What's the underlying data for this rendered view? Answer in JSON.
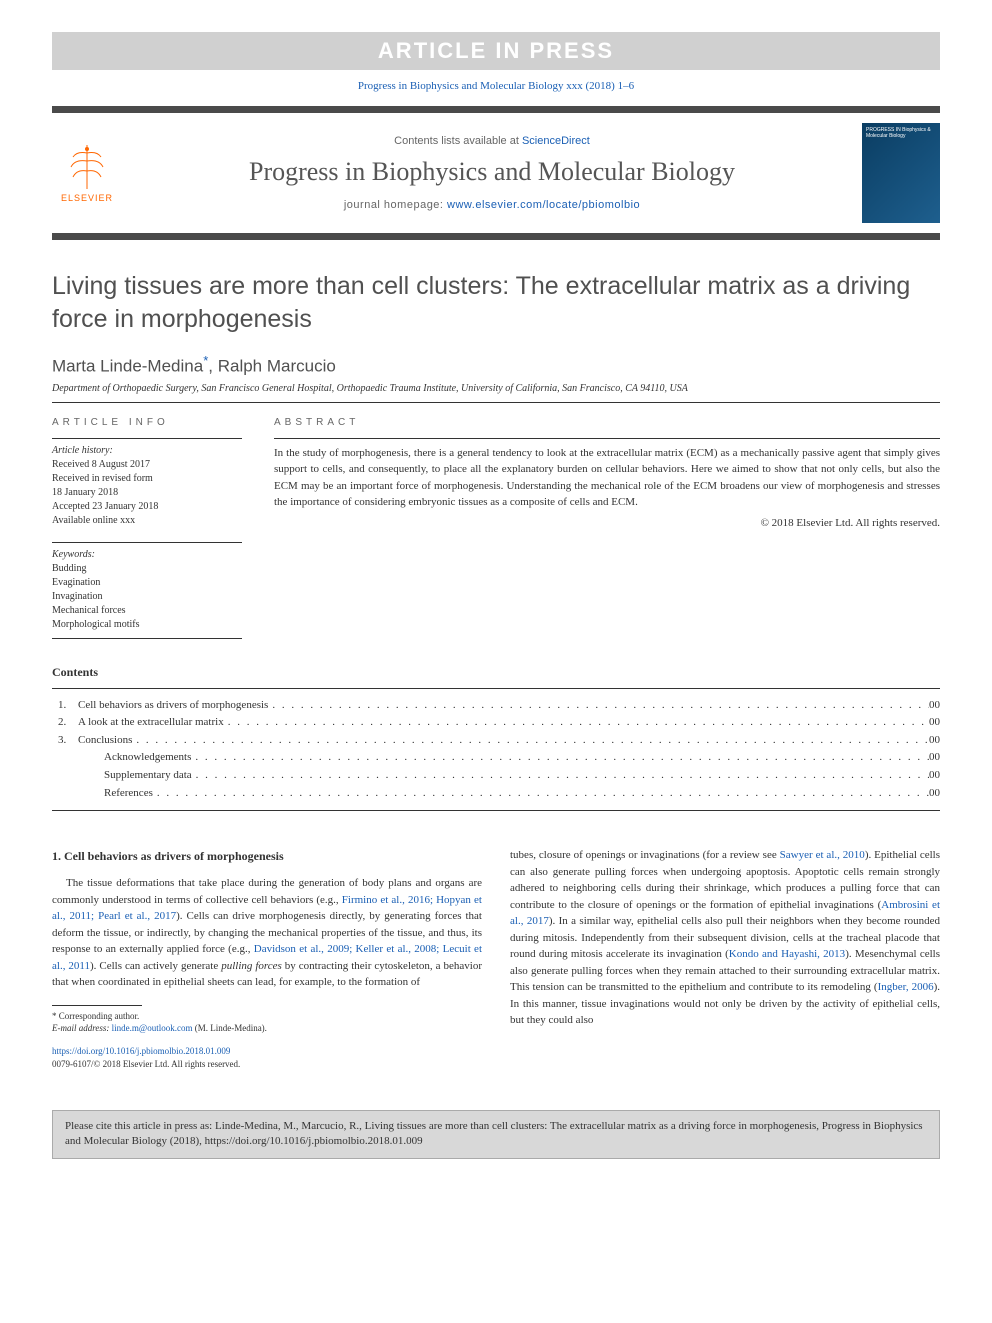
{
  "banner": "ARTICLE IN PRESS",
  "citationTop": "Progress in Biophysics and Molecular Biology xxx (2018) 1–6",
  "masthead": {
    "publisherName": "ELSEVIER",
    "contentsPrefix": "Contents lists available at ",
    "contentsLink": "ScienceDirect",
    "journalName": "Progress in Biophysics and Molecular Biology",
    "homepagePrefix": "journal homepage: ",
    "homepageUrl": "www.elsevier.com/locate/pbiomolbio",
    "coverTitle": "PROGRESS IN Biophysics & Molecular Biology"
  },
  "title": "Living tissues are more than cell clusters: The extracellular matrix as a driving force in morphogenesis",
  "authors": [
    {
      "name": "Marta Linde-Medina",
      "corresponding": true
    },
    {
      "name": "Ralph Marcucio",
      "corresponding": false
    }
  ],
  "affiliation": "Department of Orthopaedic Surgery, San Francisco General Hospital, Orthopaedic Trauma Institute, University of California, San Francisco, CA 94110, USA",
  "infoHeading": "ARTICLE INFO",
  "abstractHeading": "ABSTRACT",
  "history": {
    "label": "Article history:",
    "items": [
      "Received 8 August 2017",
      "Received in revised form",
      "18 January 2018",
      "Accepted 23 January 2018",
      "Available online xxx"
    ]
  },
  "keywords": {
    "label": "Keywords:",
    "items": [
      "Budding",
      "Evagination",
      "Invagination",
      "Mechanical forces",
      "Morphological motifs"
    ]
  },
  "abstract": "In the study of morphogenesis, there is a general tendency to look at the extracellular matrix (ECM) as a mechanically passive agent that simply gives support to cells, and consequently, to place all the explanatory burden on cellular behaviors. Here we aimed to show that not only cells, but also the ECM may be an important force of morphogenesis. Understanding the mechanical role of the ECM broadens our view of morphogenesis and stresses the importance of considering embryonic tissues as a composite of cells and ECM.",
  "copyright": "© 2018 Elsevier Ltd. All rights reserved.",
  "contentsHeading": "Contents",
  "toc": [
    {
      "num": "1.",
      "title": "Cell behaviors as drivers of morphogenesis",
      "page": "00",
      "indent": 0
    },
    {
      "num": "2.",
      "title": "A look at the extracellular matrix",
      "page": "00",
      "indent": 0
    },
    {
      "num": "3.",
      "title": "Conclusions",
      "page": "00",
      "indent": 0
    },
    {
      "num": "",
      "title": "Acknowledgements",
      "page": "00",
      "indent": 1
    },
    {
      "num": "",
      "title": "Supplementary data",
      "page": "00",
      "indent": 1
    },
    {
      "num": "",
      "title": "References",
      "page": "00",
      "indent": 1
    }
  ],
  "section1": {
    "heading": "1. Cell behaviors as drivers of morphogenesis",
    "col1": {
      "p1a": "The tissue deformations that take place during the generation of body plans and organs are commonly understood in terms of collective cell behaviors (e.g., ",
      "r1": "Firmino et al., 2016; Hopyan et al., 2011; Pearl et al., 2017",
      "p1b": "). Cells can drive morphogenesis directly, by generating forces that deform the tissue, or indirectly, by changing the mechanical properties of the tissue, and thus, its response to an externally applied force (e.g., ",
      "r2": "Davidson et al., 2009; Keller et al., 2008; Lecuit et al., 2011",
      "p1c": "). Cells can actively generate ",
      "em1": "pulling forces",
      "p1d": " by contracting their cytoskeleton, a behavior that when coordinated in epithelial sheets can lead, for example, to the formation of"
    },
    "col2": {
      "p1a": "tubes, closure of openings or invaginations (for a review see ",
      "r1": "Sawyer et al., 2010",
      "p1b": "). Epithelial cells can also generate pulling forces when undergoing apoptosis. Apoptotic cells remain strongly adhered to neighboring cells during their shrinkage, which produces a pulling force that can contribute to the closure of openings or the formation of epithelial invaginations (",
      "r2": "Ambrosini et al., 2017",
      "p1c": "). In a similar way, epithelial cells also pull their neighbors when they become rounded during mitosis. Independently from their subsequent division, cells at the tracheal placode that round during mitosis accelerate its invagination (",
      "r3": "Kondo and Hayashi, 2013",
      "p1d": "). Mesenchymal cells also generate pulling forces when they remain attached to their surrounding extracellular matrix. This tension can be transmitted to the epithelium and contribute to its remodeling (",
      "r4": "Ingber, 2006",
      "p1e": "). In this manner, tissue invaginations would not only be driven by the activity of epithelial cells, but they could also"
    }
  },
  "footnote": {
    "corrLabel": "* Corresponding author.",
    "emailLabel": "E-mail address:",
    "email": "linde.m@outlook.com",
    "emailAuthor": "(M. Linde-Medina)."
  },
  "doi": {
    "url": "https://doi.org/10.1016/j.pbiomolbio.2018.01.009",
    "issn": "0079-6107/© 2018 Elsevier Ltd. All rights reserved."
  },
  "citeBox": "Please cite this article in press as: Linde-Medina, M., Marcucio, R., Living tissues are more than cell clusters: The extracellular matrix as a driving force in morphogenesis, Progress in Biophysics and Molecular Biology (2018), https://doi.org/10.1016/j.pbiomolbio.2018.01.009",
  "colors": {
    "link": "#1a5fb4",
    "bannerBg": "#d0d0d0",
    "publisherOrange": "#ff6600",
    "rule": "#333333"
  }
}
